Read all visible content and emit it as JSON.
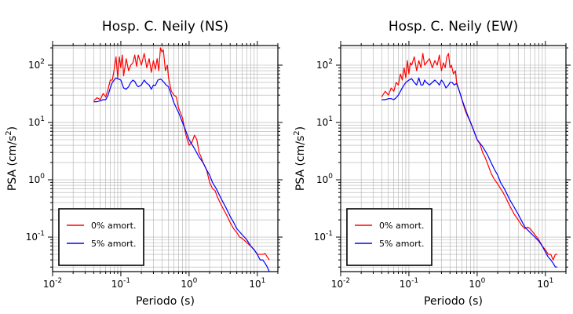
{
  "chart_data": [
    {
      "type": "line",
      "title": "Hosp. C. Neily (NS)",
      "xlabel": "Periodo (s)",
      "ylabel_main": "PSA (cm/s",
      "ylabel_sup": "2",
      "ylabel_tail": ")",
      "x_scale": "log",
      "y_scale": "log",
      "xlim": [
        0.01,
        20
      ],
      "ylim": [
        0.025,
        220
      ],
      "grid": true,
      "legend_position": "bottom-left",
      "x_ticks": [
        {
          "value": 0.01,
          "base": "10",
          "exp": "-2"
        },
        {
          "value": 0.1,
          "base": "10",
          "exp": "-1"
        },
        {
          "value": 1,
          "base": "10",
          "exp": "0"
        },
        {
          "value": 10,
          "base": "10",
          "exp": "1"
        }
      ],
      "y_ticks": [
        {
          "value": 0.1,
          "base": "10",
          "exp": "-1"
        },
        {
          "value": 1,
          "base": "10",
          "exp": "0"
        },
        {
          "value": 10,
          "base": "10",
          "exp": "1"
        },
        {
          "value": 100,
          "base": "10",
          "exp": "2"
        }
      ],
      "series": [
        {
          "name": "0% amort.",
          "color": "#ff0000",
          "x": [
            0.04,
            0.045,
            0.05,
            0.055,
            0.06,
            0.065,
            0.07,
            0.075,
            0.08,
            0.085,
            0.09,
            0.095,
            0.1,
            0.105,
            0.11,
            0.12,
            0.13,
            0.14,
            0.15,
            0.16,
            0.17,
            0.18,
            0.2,
            0.22,
            0.24,
            0.26,
            0.28,
            0.3,
            0.32,
            0.34,
            0.36,
            0.38,
            0.4,
            0.42,
            0.45,
            0.48,
            0.5,
            0.55,
            0.6,
            0.65,
            0.7,
            0.8,
            0.9,
            1.0,
            1.1,
            1.2,
            1.3,
            1.4,
            1.5,
            1.6,
            1.8,
            2.0,
            2.2,
            2.4,
            2.6,
            3.0,
            3.5,
            4.0,
            4.5,
            5.0,
            5.5,
            6.0,
            7.0,
            8.0,
            9.0,
            10,
            11,
            12,
            13,
            14,
            15
          ],
          "values": [
            24,
            27,
            25,
            32,
            28,
            38,
            55,
            55,
            85,
            140,
            60,
            140,
            90,
            150,
            65,
            130,
            80,
            100,
            110,
            150,
            95,
            150,
            100,
            160,
            90,
            130,
            75,
            120,
            85,
            130,
            80,
            200,
            170,
            185,
            80,
            100,
            60,
            35,
            30,
            28,
            18,
            12,
            6,
            4,
            4.5,
            6,
            5,
            3,
            2.5,
            2,
            1.5,
            0.9,
            0.7,
            0.65,
            0.5,
            0.35,
            0.25,
            0.18,
            0.14,
            0.12,
            0.1,
            0.095,
            0.08,
            0.07,
            0.06,
            0.05,
            0.05,
            0.05,
            0.052,
            0.045,
            0.04
          ]
        },
        {
          "name": "5% amort.",
          "color": "#0000ff",
          "x": [
            0.04,
            0.045,
            0.05,
            0.055,
            0.06,
            0.065,
            0.07,
            0.075,
            0.08,
            0.085,
            0.09,
            0.1,
            0.11,
            0.12,
            0.13,
            0.14,
            0.15,
            0.16,
            0.17,
            0.18,
            0.2,
            0.22,
            0.24,
            0.26,
            0.28,
            0.3,
            0.32,
            0.35,
            0.38,
            0.4,
            0.43,
            0.46,
            0.5,
            0.55,
            0.6,
            0.7,
            0.8,
            0.9,
            1.0,
            1.2,
            1.4,
            1.6,
            1.8,
            2.0,
            2.2,
            2.5,
            3.0,
            3.5,
            4.0,
            4.5,
            5.0,
            6.0,
            7.0,
            8.0,
            9.0,
            10,
            11,
            12,
            13,
            14,
            15
          ],
          "values": [
            23,
            23,
            24,
            25,
            25,
            30,
            40,
            50,
            55,
            60,
            58,
            55,
            40,
            38,
            42,
            50,
            55,
            52,
            45,
            42,
            45,
            55,
            48,
            45,
            38,
            45,
            44,
            55,
            57,
            55,
            50,
            45,
            42,
            30,
            22,
            15,
            10,
            7,
            5,
            3.5,
            2.5,
            2,
            1.5,
            1.2,
            0.9,
            0.7,
            0.45,
            0.32,
            0.23,
            0.18,
            0.14,
            0.11,
            0.09,
            0.07,
            0.06,
            0.05,
            0.04,
            0.04,
            0.035,
            0.03,
            0.025
          ]
        }
      ]
    },
    {
      "type": "line",
      "title": "Hosp. C. Neily (EW)",
      "xlabel": "Periodo (s)",
      "ylabel_main": "PSA (cm/s",
      "ylabel_sup": "2",
      "ylabel_tail": ")",
      "x_scale": "log",
      "y_scale": "log",
      "xlim": [
        0.01,
        20
      ],
      "ylim": [
        0.025,
        220
      ],
      "grid": true,
      "legend_position": "bottom-left",
      "x_ticks": [
        {
          "value": 0.01,
          "base": "10",
          "exp": "-2"
        },
        {
          "value": 0.1,
          "base": "10",
          "exp": "-1"
        },
        {
          "value": 1,
          "base": "10",
          "exp": "0"
        },
        {
          "value": 10,
          "base": "10",
          "exp": "1"
        }
      ],
      "y_ticks": [
        {
          "value": 0.1,
          "base": "10",
          "exp": "-1"
        },
        {
          "value": 1,
          "base": "10",
          "exp": "0"
        },
        {
          "value": 10,
          "base": "10",
          "exp": "1"
        },
        {
          "value": 100,
          "base": "10",
          "exp": "2"
        }
      ],
      "series": [
        {
          "name": "0% amort.",
          "color": "#ff0000",
          "x": [
            0.04,
            0.045,
            0.05,
            0.055,
            0.06,
            0.065,
            0.07,
            0.075,
            0.08,
            0.085,
            0.09,
            0.095,
            0.1,
            0.105,
            0.11,
            0.12,
            0.13,
            0.14,
            0.15,
            0.16,
            0.17,
            0.18,
            0.2,
            0.22,
            0.24,
            0.26,
            0.28,
            0.3,
            0.32,
            0.34,
            0.36,
            0.38,
            0.4,
            0.42,
            0.45,
            0.48,
            0.5,
            0.55,
            0.6,
            0.65,
            0.7,
            0.8,
            0.9,
            1.0,
            1.1,
            1.2,
            1.3,
            1.4,
            1.5,
            1.6,
            1.8,
            2.0,
            2.2,
            2.4,
            2.6,
            3.0,
            3.5,
            4.0,
            4.5,
            5.0,
            5.5,
            6.0,
            7.0,
            8.0,
            9.0,
            10,
            11,
            12,
            13,
            14,
            15
          ],
          "values": [
            28,
            35,
            30,
            40,
            35,
            50,
            45,
            70,
            55,
            90,
            60,
            120,
            70,
            110,
            100,
            140,
            80,
            120,
            90,
            160,
            100,
            110,
            130,
            90,
            120,
            100,
            150,
            80,
            110,
            90,
            140,
            160,
            90,
            100,
            70,
            80,
            50,
            35,
            25,
            18,
            14,
            10,
            7,
            5,
            4.2,
            3,
            2.5,
            2,
            1.6,
            1.3,
            1,
            0.85,
            0.7,
            0.6,
            0.5,
            0.35,
            0.25,
            0.2,
            0.16,
            0.14,
            0.15,
            0.14,
            0.11,
            0.09,
            0.07,
            0.06,
            0.05,
            0.05,
            0.04,
            0.05,
            0.05
          ]
        },
        {
          "name": "5% amort.",
          "color": "#0000ff",
          "x": [
            0.04,
            0.045,
            0.05,
            0.055,
            0.06,
            0.065,
            0.07,
            0.075,
            0.08,
            0.085,
            0.09,
            0.1,
            0.11,
            0.12,
            0.13,
            0.14,
            0.15,
            0.16,
            0.17,
            0.18,
            0.2,
            0.22,
            0.24,
            0.26,
            0.28,
            0.3,
            0.32,
            0.35,
            0.38,
            0.4,
            0.43,
            0.46,
            0.5,
            0.55,
            0.6,
            0.7,
            0.8,
            0.9,
            1.0,
            1.2,
            1.4,
            1.6,
            1.8,
            2.0,
            2.2,
            2.5,
            3.0,
            3.5,
            4.0,
            4.5,
            5.0,
            6.0,
            7.0,
            8.0,
            9.0,
            10,
            11,
            12,
            13,
            14,
            15
          ],
          "values": [
            25,
            25,
            26,
            26,
            25,
            27,
            30,
            35,
            40,
            45,
            50,
            55,
            58,
            50,
            45,
            60,
            45,
            45,
            55,
            50,
            45,
            50,
            55,
            50,
            45,
            55,
            50,
            40,
            45,
            50,
            50,
            45,
            48,
            35,
            25,
            15,
            10,
            7,
            5,
            3.8,
            2.8,
            2,
            1.5,
            1.2,
            0.9,
            0.7,
            0.45,
            0.33,
            0.25,
            0.19,
            0.15,
            0.12,
            0.1,
            0.085,
            0.07,
            0.055,
            0.045,
            0.04,
            0.035,
            0.03,
            0.03
          ]
        }
      ]
    }
  ]
}
